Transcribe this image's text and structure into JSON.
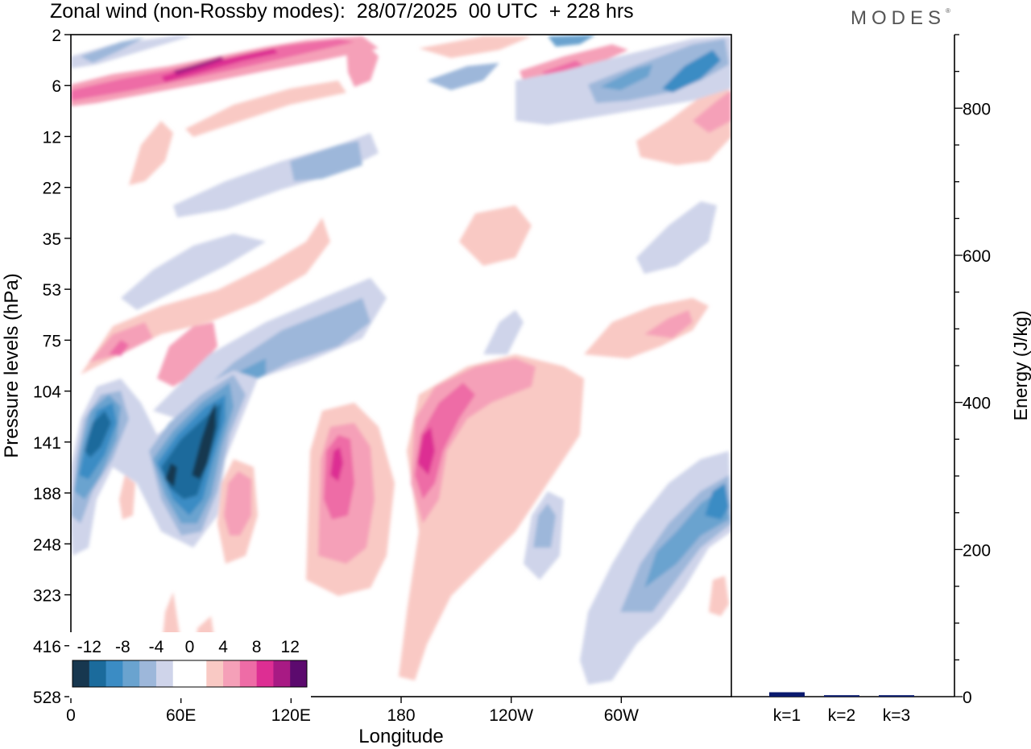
{
  "title": "Zonal wind (non-Rossby modes):  28/07/2025  00 UTC  + 228 hrs",
  "brand": "MODES",
  "brand_mark": "®",
  "chart_data": [
    {
      "type": "heatmap",
      "title": "Zonal wind (non-Rossby modes):  28/07/2025  00 UTC  + 228 hrs",
      "xlabel": "Longitude",
      "ylabel": "Pressure levels (hPa)",
      "x_ticks": [
        "0",
        "60E",
        "120E",
        "180",
        "120W",
        "60W"
      ],
      "x_tick_values": [
        0,
        60,
        120,
        180,
        240,
        300
      ],
      "xlim": [
        0,
        360
      ],
      "y_ticks": [
        "2",
        "6",
        "12",
        "22",
        "35",
        "53",
        "75",
        "104",
        "141",
        "188",
        "248",
        "323",
        "416",
        "528"
      ],
      "colorbar": {
        "labels": [
          "-12",
          "-8",
          "-4",
          "0",
          "4",
          "8",
          "12"
        ],
        "colors": [
          "#17374f",
          "#1b6b9c",
          "#3b8cc4",
          "#6aa3cf",
          "#9db7da",
          "#cfd4ea",
          "#ffffff",
          "#ffffff",
          "#f9c9c4",
          "#f5a0b8",
          "#ee6ca6",
          "#dd2e93",
          "#a81a84",
          "#5c0a6e"
        ]
      },
      "features": [
        {
          "type": "negative",
          "cx": 60,
          "cy": 141,
          "rx": 22,
          "ry": 60,
          "value": -14
        },
        {
          "type": "negative",
          "cx": 12,
          "cy": 141,
          "rx": 14,
          "ry": 45,
          "value": -10
        },
        {
          "type": "positive",
          "cx": 145,
          "cy": 141,
          "rx": 20,
          "ry": 70,
          "value": 8
        },
        {
          "type": "positive",
          "cx": 193,
          "cy": 141,
          "rx": 22,
          "ry": 55,
          "value": 10
        },
        {
          "type": "positive",
          "cx": 25,
          "cy": 6,
          "rx": 40,
          "ry": 3,
          "value": 10
        },
        {
          "type": "positive",
          "cx": 105,
          "cy": 3,
          "rx": 45,
          "ry": 2,
          "value": 12
        },
        {
          "type": "negative",
          "cx": 300,
          "cy": 5,
          "rx": 40,
          "ry": 3,
          "value": -8
        },
        {
          "type": "negative",
          "cx": 345,
          "cy": 188,
          "rx": 28,
          "ry": 40,
          "value": -6
        }
      ]
    },
    {
      "type": "bar",
      "categories": [
        "k=1",
        "k=2",
        "k=3"
      ],
      "values": [
        6,
        2,
        2
      ],
      "ylabel": "Energy (J/kg)",
      "ylim": [
        0,
        900
      ],
      "y_ticks": [
        "0",
        "200",
        "400",
        "600",
        "800"
      ],
      "y_tick_values": [
        0,
        200,
        400,
        600,
        800
      ]
    }
  ]
}
